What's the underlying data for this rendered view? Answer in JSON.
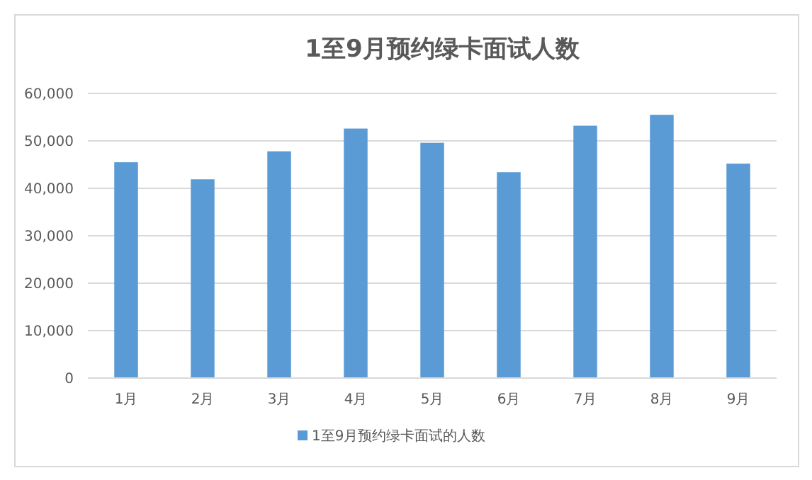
{
  "chart_data": {
    "type": "bar",
    "title": "1至9月预约绿卡面试人数",
    "categories": [
      "1月",
      "2月",
      "3月",
      "4月",
      "5月",
      "6月",
      "7月",
      "8月",
      "9月"
    ],
    "series": [
      {
        "name": "1至9月预约绿卡面试的人数",
        "color": "#5b9bd5",
        "values": [
          45500,
          41900,
          47800,
          52600,
          49600,
          43400,
          53200,
          55500,
          45200
        ]
      }
    ],
    "ylim": [
      0,
      60000
    ],
    "yticks": [
      {
        "value": 0,
        "label": "0"
      },
      {
        "value": 10000,
        "label": "10,000"
      },
      {
        "value": 20000,
        "label": "20,000"
      },
      {
        "value": 30000,
        "label": "30,000"
      },
      {
        "value": 40000,
        "label": "40,000"
      },
      {
        "value": 50000,
        "label": "50,000"
      },
      {
        "value": 60000,
        "label": "60,000"
      }
    ],
    "grid": "y",
    "legend": "bottom"
  }
}
